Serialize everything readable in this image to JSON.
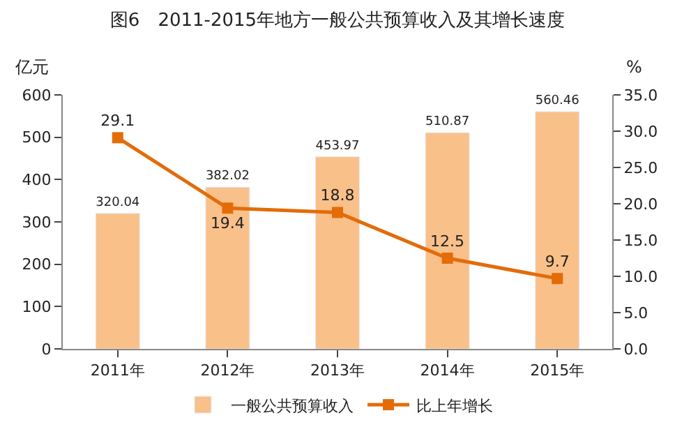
{
  "chart_data": {
    "type": "bar",
    "title": "图6　2011-2015年地方一般公共预算收入及其增长速度",
    "ylabel": "亿元",
    "y2label": "%",
    "categories": [
      "2011年",
      "2012年",
      "2013年",
      "2014年",
      "2015年"
    ],
    "series": [
      {
        "name": "一般公共预算收入",
        "color": "#f9c08a",
        "values": [
          320.04,
          382.02,
          453.97,
          510.87,
          560.46
        ]
      },
      {
        "name": "比上年增长",
        "type": "line",
        "axis": "y2",
        "color": "#e36c09",
        "marker": "square",
        "values": [
          29.1,
          19.4,
          18.8,
          12.5,
          9.7
        ]
      }
    ],
    "ylim": [
      0,
      600
    ],
    "yticks": [
      0,
      100,
      200,
      300,
      400,
      500,
      600
    ],
    "y2lim": [
      0,
      35
    ],
    "y2ticks": [
      {
        "value": 0,
        "label": "0.0"
      },
      {
        "value": 5,
        "label": "5.0"
      },
      {
        "value": 10,
        "label": "10.0"
      },
      {
        "value": 15,
        "label": "15.0"
      },
      {
        "value": 20,
        "label": "20.0"
      },
      {
        "value": 25,
        "label": "25.0"
      },
      {
        "value": 30,
        "label": "30.0"
      },
      {
        "value": 35,
        "label": "35.0"
      }
    ],
    "data_labels": true,
    "legend": "bottom"
  }
}
